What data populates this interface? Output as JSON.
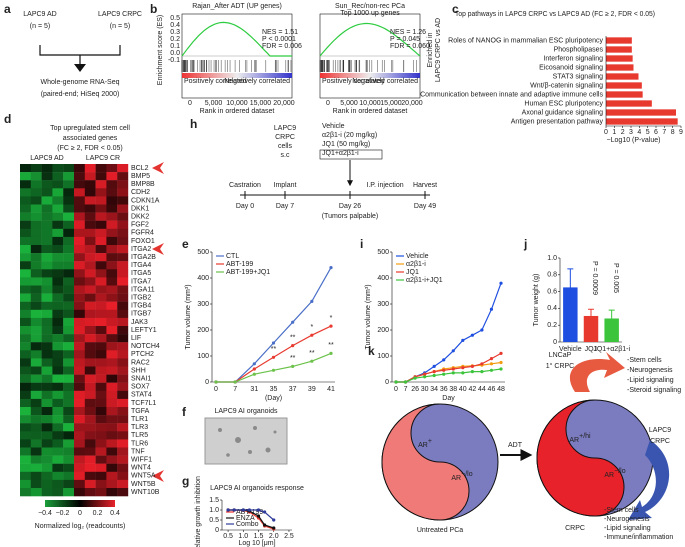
{
  "chart_data": [
    {
      "type": "hbar",
      "title": "Top pathways in LAPC9 CRPC vs LAPC9 AD (FC ≥ 2, FDR < 0.05)",
      "categories": [
        "Roles of NANOG in mammalian ESC pluripotency",
        "Phospholipases",
        "Interferon signaling",
        "Eicosanoid signaling",
        "STAT3 signaling",
        "Wnt/β-catenin signaling",
        "Communication between innate and adaptive immune cells",
        "Human ESC pluripotency",
        "Axonal guidance signaling",
        "Antigen presentation pathway"
      ],
      "values": [
        3.1,
        3.1,
        3.2,
        3.3,
        3.9,
        4.3,
        4.4,
        5.5,
        8.4,
        8.6
      ],
      "color": "#e8392f",
      "xlabel": "−Log10 (P-value)",
      "xlim": [
        0,
        9
      ],
      "xticks": [
        0,
        1,
        2,
        3,
        4,
        5,
        6,
        7,
        8,
        9
      ]
    },
    {
      "type": "line",
      "categories": [
        "0",
        "7",
        "31",
        "35",
        "37",
        "39",
        "41"
      ],
      "series": [
        {
          "name": "CTL",
          "color": "#4a6fc7",
          "values": [
            0,
            0,
            70,
            150,
            230,
            310,
            440
          ]
        },
        {
          "name": "ABT-199",
          "color": "#e83a2f",
          "values": [
            0,
            0,
            50,
            95,
            140,
            180,
            215
          ]
        },
        {
          "name": "ABT-199+JQ1",
          "color": "#6cc24a",
          "values": [
            0,
            0,
            30,
            45,
            60,
            80,
            110
          ]
        }
      ],
      "ylabel": "Tumor volume (mm³)",
      "xlabel": "(Day)",
      "ylim": [
        0,
        500
      ],
      "yticks": [
        0,
        100,
        200,
        300,
        400,
        500
      ],
      "legend": "upper left",
      "annotations": [
        "**",
        "**",
        "*",
        "*",
        "**",
        "**",
        "**"
      ]
    },
    {
      "type": "line",
      "categories": [
        "0",
        "7",
        "26",
        "30",
        "34",
        "36",
        "38",
        "40",
        "42",
        "44",
        "46",
        "48"
      ],
      "series": [
        {
          "name": "Vehicle",
          "color": "#1f4fe0",
          "values": [
            0,
            0,
            20,
            35,
            60,
            85,
            120,
            160,
            180,
            200,
            280,
            380
          ]
        },
        {
          "name": "α2β1-i",
          "color": "#f39c12",
          "values": [
            0,
            0,
            20,
            30,
            40,
            50,
            55,
            60,
            62,
            65,
            70,
            75
          ]
        },
        {
          "name": "JQ1",
          "color": "#e8392f",
          "values": [
            0,
            0,
            20,
            30,
            40,
            45,
            50,
            55,
            60,
            70,
            90,
            110
          ]
        },
        {
          "name": "α2β1-i+JQ1",
          "color": "#3cc43c",
          "values": [
            0,
            0,
            15,
            20,
            25,
            30,
            35,
            35,
            40,
            40,
            45,
            50
          ]
        }
      ],
      "ylabel": "Tumor volume (mm³)",
      "xlabel": "Day",
      "ylim": [
        0,
        500
      ],
      "yticks": [
        0,
        100,
        200,
        300,
        400,
        500
      ],
      "legend": "upper left"
    },
    {
      "type": "bar",
      "categories": [
        "Vehicle",
        "JQ1",
        "JQ1+α2β1-i"
      ],
      "values": [
        0.65,
        0.31,
        0.28
      ],
      "errors": [
        0.22,
        0.08,
        0.1
      ],
      "colors": [
        "#1f4fe0",
        "#e8392f",
        "#3cc43c"
      ],
      "ylabel": "Tumor weight (g)",
      "ylim": [
        0,
        1
      ],
      "yticks": [
        0,
        0.2,
        0.4,
        0.6,
        0.8,
        {
          "value": 1,
          "label": "1.0"
        }
      ],
      "annotations": [
        "P = 0.0009",
        "P = 0.005"
      ]
    },
    {
      "type": "line",
      "title": "LAPC9 AI organoids response",
      "x": [
        0.5,
        0.7,
        1.0,
        1.2,
        1.5,
        1.7,
        2.0
      ],
      "series": [
        {
          "name": "ABT-199",
          "color": "#e8392f",
          "values": [
            1.0,
            1.0,
            0.98,
            0.9,
            0.6,
            0.2,
            0.05
          ]
        },
        {
          "name": "ENZA",
          "color": "#111111",
          "values": [
            1.0,
            1.0,
            1.0,
            0.95,
            0.7,
            0.25,
            0.1
          ]
        },
        {
          "name": "Combo",
          "color": "#2f3b9a",
          "values": [
            1.0,
            1.0,
            1.0,
            1.0,
            1.0,
            0.9,
            0.5
          ]
        }
      ],
      "ylabel": "Relative growth inhibition",
      "xlabel": "Log 10 [μm]",
      "xlim": [
        0.3,
        2.6
      ],
      "ylim": [
        0,
        1.5
      ],
      "xticks": [
        0.5,
        {
          "value": 1,
          "label": "1.0"
        },
        1.5,
        {
          "value": 2,
          "label": "2.0"
        },
        2.5
      ],
      "yticks": [
        0,
        0.5,
        {
          "value": 1,
          "label": "1.0"
        },
        1.5
      ],
      "legend": "lower left"
    }
  ],
  "labels": [
    "a",
    "b",
    "c",
    "d",
    "e",
    "f",
    "g",
    "h",
    "i",
    "j",
    "k"
  ],
  "a": {
    "left": "LAPC9 AD",
    "left_n": "(n = 5)",
    "right": "LAPC9 CRPC",
    "right_n": "(n = 5)",
    "out": "Whole-genome RNA-Seq",
    "out2": "(paired-end; HiSeq 2000)"
  },
  "b": {
    "plots": [
      {
        "title": "Rajan_After ADT (UP genes)",
        "stats": [
          "NES = 1.51",
          "P < 0.0001",
          "FDR = 0.006"
        ]
      },
      {
        "title": "Sun_Rec/non-rec PCa",
        "title2": "Top 1000 up genes",
        "stats": [
          "NES = 1.26",
          "P = 0.045",
          "FDR = 0.060"
        ]
      }
    ],
    "ylabel": "Enrichment score (ES)",
    "xlabel": "Rank in ordered dataset",
    "pos": "Positively correlated",
    "neg": "Negatively correlated",
    "side": "Enriched in",
    "side2": "LAPC9 CRPC vs AD",
    "yticks": [
      "0.5",
      "0.4",
      "0.3",
      "0.2",
      "0.1",
      "0.0",
      "-0.1"
    ],
    "xticks": [
      "0",
      "5,000",
      "10,000",
      "15,000",
      "20,000"
    ]
  },
  "d": {
    "title": "Top upregulated stem cell",
    "title2": "associated genes",
    "subtitle": "(FC ≥ 2, FDR < 0.05)",
    "col_left": "LAPC9 AD",
    "col_right": "LAPC9 CR",
    "genes": [
      "BCL2",
      "BMP5",
      "BMP8B",
      "CDH2",
      "CDKN1A",
      "DKK1",
      "DKK2",
      "FGF2",
      "FGFR4",
      "FOXO1",
      "ITGA2",
      "ITGA2B",
      "ITGA4",
      "ITGA5",
      "ITGA7",
      "ITGA11",
      "ITGB2",
      "ITGB4",
      "ITGB7",
      "JAK3",
      "LEFTY1",
      "LIF",
      "NOTCH4",
      "PTCH2",
      "RAC2",
      "SHH",
      "SNAI1",
      "SOX7",
      "STAT4",
      "TCF7L1",
      "TGFA",
      "TLR1",
      "TLR3",
      "TLR5",
      "TLR6",
      "TNF",
      "WIFF1",
      "WNT4",
      "WNT5A",
      "WNT5B",
      "WNT10B"
    ],
    "scale_ticks": [
      "−0.4",
      "−0.2",
      "0",
      "0.2",
      "0.4"
    ],
    "scale_title": "Normalized log₂ (readcounts)"
  },
  "f": {
    "title": "LAPC9 AI organoids"
  },
  "h": {
    "cells": [
      "LAPC9",
      "CRPC",
      "cells",
      "s.c"
    ],
    "treat": [
      "Vehicle",
      "α2β1-i (20 mg/kg)",
      "JQ1 (50 mg/kg)",
      "JQ1+α2β1-i"
    ],
    "events": [
      "Castration",
      "Implant",
      "I.P. injection",
      "Harvest"
    ],
    "days": [
      "Day 0",
      "Day 7",
      "Day 26",
      "Day 49"
    ],
    "note": "(Tumors palpable)"
  },
  "k": {
    "lncap": "LNCaP",
    "lncap2": "1° CRPC",
    "list1": [
      "-Stem cells",
      "-Neurogenesis",
      "-Lipid signaling",
      "-Steroid signaling"
    ],
    "ar_pos": {
      "base": "AR",
      "sup": "+"
    },
    "ar_lo": {
      "base": "AR",
      "sup": "−/lo"
    },
    "adt": "ADT",
    "ar_hi": {
      "base": "AR",
      "sup": "+/hi"
    },
    "ar_lo2": {
      "base": "AR",
      "sup": "−/lo"
    },
    "lapc": "LAPC9",
    "lapc2": "CRPC",
    "untreated": "Untreated PCa",
    "crpc": "CRPC",
    "list2": [
      "-Stem cells",
      "-Neurogenesis",
      "-Lipid signaling",
      "-Immune/inflammation"
    ]
  }
}
